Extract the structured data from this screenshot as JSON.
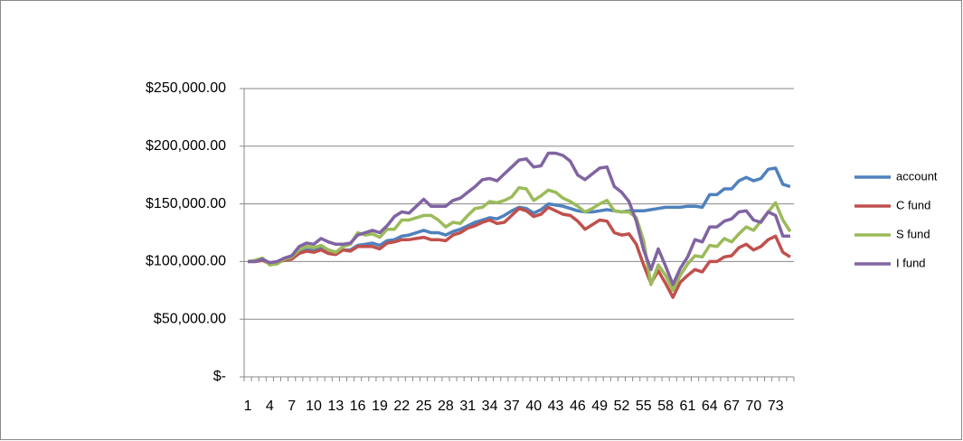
{
  "chart_data": {
    "type": "line",
    "categories": [
      1,
      null,
      null,
      4,
      null,
      null,
      7,
      null,
      null,
      10,
      null,
      null,
      13,
      null,
      null,
      16,
      null,
      null,
      19,
      null,
      null,
      22,
      null,
      null,
      25,
      null,
      null,
      28,
      null,
      null,
      31,
      null,
      null,
      34,
      null,
      null,
      37,
      null,
      null,
      40,
      null,
      null,
      43,
      null,
      null,
      46,
      null,
      null,
      49,
      null,
      null,
      52,
      null,
      null,
      55,
      null,
      null,
      58,
      null,
      null,
      61,
      null,
      null,
      64,
      null,
      null,
      67,
      null,
      null,
      70,
      null,
      null,
      73,
      null,
      null
    ],
    "ylim": [
      0,
      250000
    ],
    "yticks": [
      {
        "value": 0,
        "label": "$-"
      },
      {
        "value": 50000,
        "label": "$50,000.00"
      },
      {
        "value": 100000,
        "label": "$100,000.00"
      },
      {
        "value": 150000,
        "label": "$150,000.00"
      },
      {
        "value": 200000,
        "label": "$200,000.00"
      },
      {
        "value": 250000,
        "label": "$250,000.00"
      }
    ],
    "grid": true,
    "legend": "right",
    "series": [
      {
        "name": "account",
        "color": "#4f81bd",
        "values": [
          100000,
          100000,
          101000,
          99000,
          99000,
          102000,
          103000,
          108000,
          110000,
          110000,
          112000,
          110000,
          108000,
          110000,
          110000,
          114000,
          115000,
          116000,
          114000,
          118000,
          119000,
          122000,
          123000,
          125000,
          127000,
          125000,
          125000,
          123000,
          126000,
          128000,
          131000,
          134000,
          136000,
          138000,
          137000,
          140000,
          144000,
          147000,
          146000,
          142000,
          145000,
          150000,
          149000,
          148000,
          146000,
          144000,
          143000,
          143000,
          144000,
          145000,
          144000,
          143000,
          144000,
          144000,
          144000,
          145000,
          146000,
          147000,
          147000,
          147000,
          148000,
          148000,
          147000,
          158000,
          158000,
          163000,
          163000,
          170000,
          173000,
          170000,
          172000,
          180000,
          181000,
          167000,
          165000
        ]
      },
      {
        "name": "C fund",
        "color": "#c0504d",
        "values": [
          100000,
          100000,
          101000,
          98000,
          99000,
          101000,
          102000,
          107000,
          109000,
          108000,
          110000,
          107000,
          106000,
          110000,
          109000,
          113000,
          113000,
          113000,
          111000,
          116000,
          117000,
          119000,
          119000,
          120000,
          121000,
          119000,
          119000,
          118000,
          123000,
          125000,
          129000,
          131000,
          134000,
          136000,
          133000,
          134000,
          140000,
          146000,
          144000,
          139000,
          141000,
          147000,
          144000,
          141000,
          140000,
          135000,
          128000,
          132000,
          136000,
          135000,
          125000,
          123000,
          124000,
          115000,
          97000,
          81000,
          92000,
          81000,
          69000,
          82000,
          88000,
          93000,
          91000,
          100000,
          100000,
          104000,
          105000,
          112000,
          115000,
          110000,
          113000,
          119000,
          122000,
          108000,
          104000
        ]
      },
      {
        "name": "S fund",
        "color": "#9bbb59",
        "values": [
          100000,
          101000,
          103000,
          97000,
          98000,
          102000,
          104000,
          110000,
          113000,
          112000,
          114000,
          110000,
          108000,
          113000,
          115000,
          125000,
          123000,
          124000,
          121000,
          128000,
          128000,
          136000,
          136000,
          138000,
          140000,
          140000,
          136000,
          130000,
          134000,
          133000,
          140000,
          146000,
          147000,
          152000,
          151000,
          153000,
          156000,
          164000,
          163000,
          153000,
          157000,
          162000,
          160000,
          155000,
          152000,
          148000,
          143000,
          146000,
          150000,
          153000,
          144000,
          143000,
          143000,
          138000,
          118000,
          80000,
          97000,
          88000,
          75000,
          88000,
          98000,
          105000,
          104000,
          114000,
          113000,
          120000,
          117000,
          124000,
          130000,
          127000,
          135000,
          143000,
          151000,
          136000,
          126000
        ]
      },
      {
        "name": "I fund",
        "color": "#8064a2",
        "values": [
          100000,
          100000,
          102000,
          99000,
          100000,
          103000,
          105000,
          113000,
          116000,
          115000,
          120000,
          117000,
          115000,
          115000,
          116000,
          123000,
          125000,
          127000,
          125000,
          131000,
          139000,
          143000,
          142000,
          148000,
          154000,
          148000,
          148000,
          148000,
          153000,
          155000,
          160000,
          165000,
          171000,
          172000,
          170000,
          176000,
          182000,
          188000,
          189000,
          182000,
          183000,
          194000,
          194000,
          192000,
          187000,
          175000,
          171000,
          176000,
          181000,
          182000,
          165000,
          160000,
          152000,
          135000,
          110000,
          93000,
          111000,
          96000,
          80000,
          94000,
          104000,
          119000,
          117000,
          130000,
          130000,
          135000,
          137000,
          143000,
          144000,
          136000,
          134000,
          143000,
          140000,
          122000,
          122000
        ]
      }
    ]
  }
}
